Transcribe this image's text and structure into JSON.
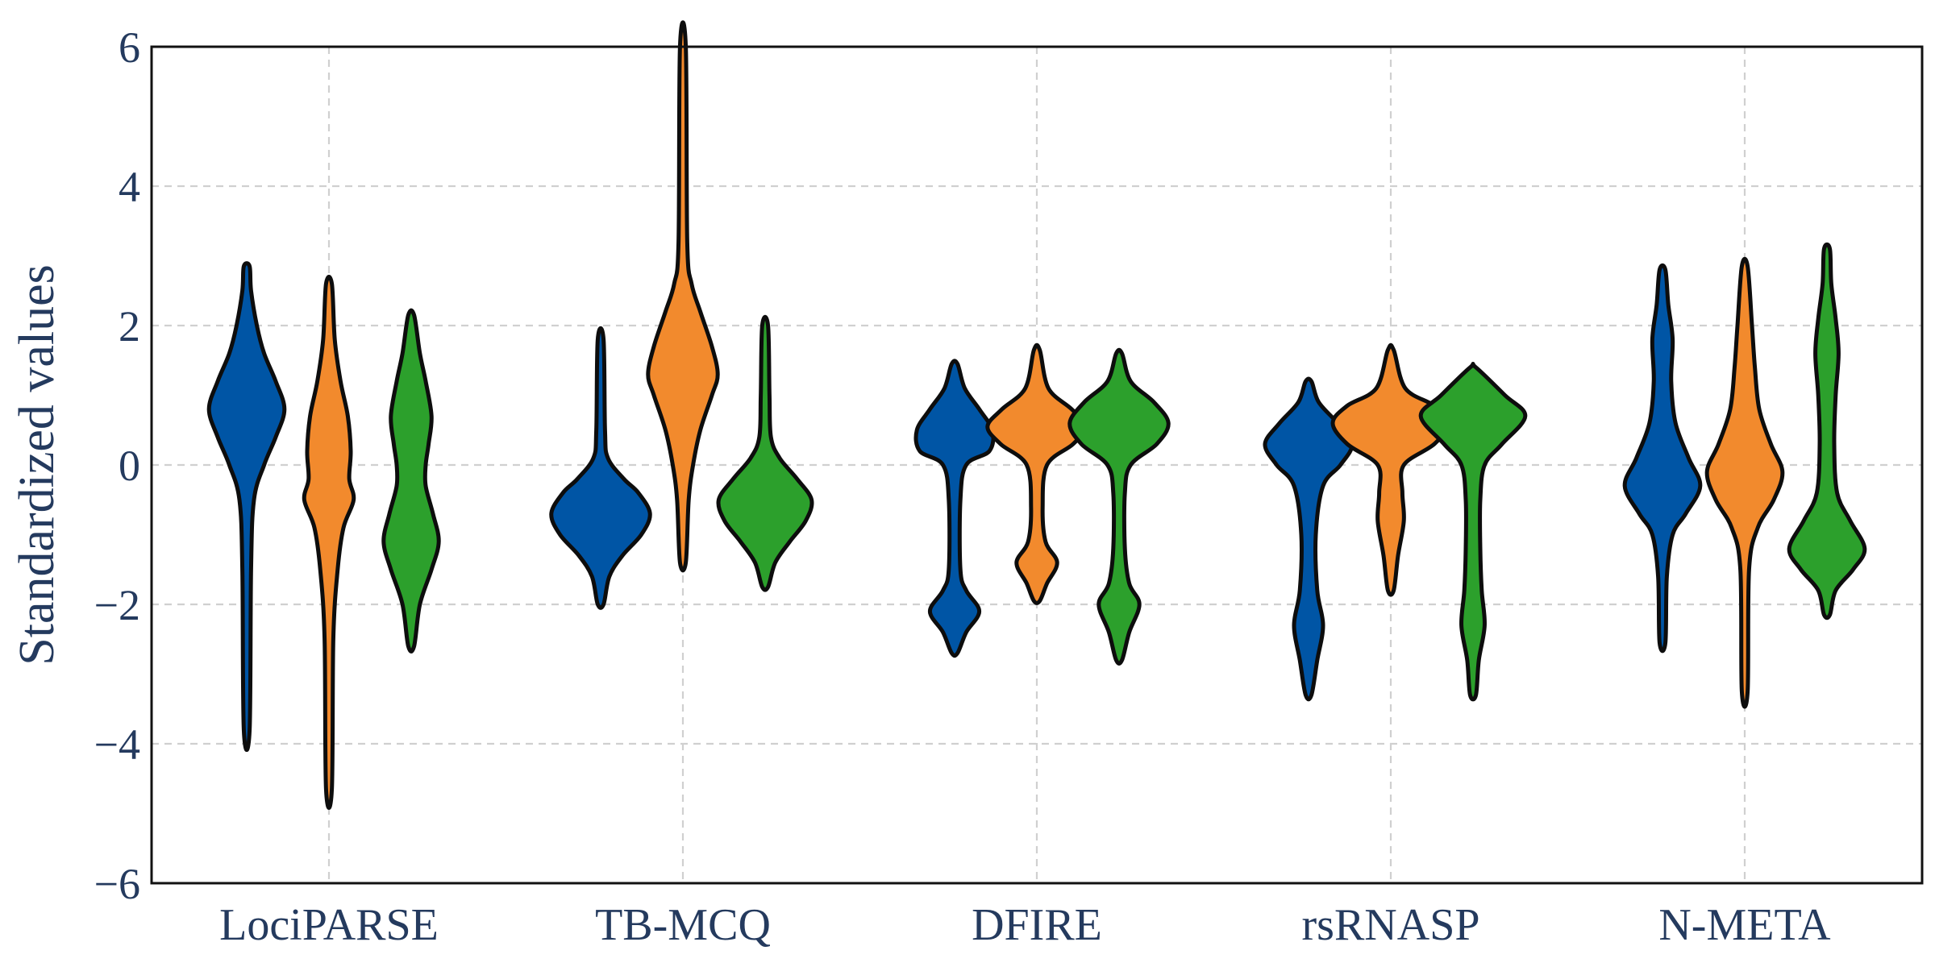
{
  "chart_data": {
    "type": "violin",
    "ylabel": "Standardized values",
    "ylim": [
      -6,
      6
    ],
    "yticks": [
      -6,
      -4,
      -2,
      0,
      2,
      4,
      6
    ],
    "ytick_labels": [
      "−6",
      "−4",
      "−2",
      "0",
      "2",
      "4",
      "6"
    ],
    "grid": true,
    "categories": [
      "LociPARSE",
      "TB-MCQ",
      "DFIRE",
      "rsRNASP",
      "N-META"
    ],
    "colors": [
      "#0055a5",
      "#f28a2d",
      "#2ca02c"
    ],
    "violins": [
      {
        "category": "LociPARSE",
        "series_index": 0,
        "min": -3.8,
        "max": 2.85,
        "profile": [
          [
            -3.8,
            0.02
          ],
          [
            -1.5,
            0.03
          ],
          [
            -0.5,
            0.05
          ],
          [
            0,
            0.12
          ],
          [
            0.4,
            0.2
          ],
          [
            0.8,
            0.26
          ],
          [
            1.2,
            0.2
          ],
          [
            1.6,
            0.12
          ],
          [
            2.0,
            0.07
          ],
          [
            2.5,
            0.03
          ],
          [
            2.85,
            0.02
          ]
        ]
      },
      {
        "category": "LociPARSE",
        "series_index": 1,
        "min": -4.65,
        "max": 2.6,
        "profile": [
          [
            -4.65,
            0.02
          ],
          [
            -2.5,
            0.03
          ],
          [
            -1.5,
            0.06
          ],
          [
            -0.9,
            0.1
          ],
          [
            -0.5,
            0.17
          ],
          [
            -0.2,
            0.14
          ],
          [
            0.2,
            0.15
          ],
          [
            0.7,
            0.13
          ],
          [
            1.2,
            0.08
          ],
          [
            1.8,
            0.04
          ],
          [
            2.6,
            0.02
          ]
        ]
      },
      {
        "category": "LociPARSE",
        "series_index": 2,
        "min": -2.6,
        "max": 2.15,
        "profile": [
          [
            -2.6,
            0.02
          ],
          [
            -2.0,
            0.06
          ],
          [
            -1.5,
            0.14
          ],
          [
            -1.1,
            0.19
          ],
          [
            -0.7,
            0.15
          ],
          [
            -0.3,
            0.1
          ],
          [
            0,
            0.1
          ],
          [
            0.3,
            0.12
          ],
          [
            0.7,
            0.14
          ],
          [
            1.2,
            0.1
          ],
          [
            1.6,
            0.06
          ],
          [
            2.15,
            0.02
          ]
        ]
      },
      {
        "category": "TB-MCQ",
        "series_index": 0,
        "min": -2.0,
        "max": 1.8,
        "profile": [
          [
            -2.0,
            0.02
          ],
          [
            -1.6,
            0.06
          ],
          [
            -1.3,
            0.15
          ],
          [
            -1.0,
            0.28
          ],
          [
            -0.7,
            0.34
          ],
          [
            -0.4,
            0.26
          ],
          [
            -0.2,
            0.16
          ],
          [
            0.1,
            0.05
          ],
          [
            0.5,
            0.03
          ],
          [
            1.8,
            0.02
          ]
        ]
      },
      {
        "category": "TB-MCQ",
        "series_index": 1,
        "min": -1.4,
        "max": 6.0,
        "profile": [
          [
            -1.4,
            0.02
          ],
          [
            -0.5,
            0.04
          ],
          [
            0,
            0.07
          ],
          [
            0.5,
            0.12
          ],
          [
            1.0,
            0.2
          ],
          [
            1.3,
            0.24
          ],
          [
            1.7,
            0.2
          ],
          [
            2.2,
            0.12
          ],
          [
            2.6,
            0.06
          ],
          [
            3.2,
            0.03
          ],
          [
            6.0,
            0.02
          ]
        ]
      },
      {
        "category": "TB-MCQ",
        "series_index": 2,
        "min": -1.75,
        "max": 2.0,
        "profile": [
          [
            -1.75,
            0.02
          ],
          [
            -1.4,
            0.07
          ],
          [
            -1.1,
            0.17
          ],
          [
            -0.8,
            0.28
          ],
          [
            -0.5,
            0.32
          ],
          [
            -0.2,
            0.22
          ],
          [
            0.1,
            0.1
          ],
          [
            0.4,
            0.04
          ],
          [
            1.0,
            0.03
          ],
          [
            2.0,
            0.02
          ]
        ]
      },
      {
        "category": "DFIRE",
        "series_index": 0,
        "min": -2.7,
        "max": 1.45,
        "profile": [
          [
            -2.7,
            0.02
          ],
          [
            -2.4,
            0.08
          ],
          [
            -2.1,
            0.17
          ],
          [
            -1.8,
            0.08
          ],
          [
            -1.5,
            0.04
          ],
          [
            -0.5,
            0.04
          ],
          [
            0,
            0.08
          ],
          [
            0.2,
            0.24
          ],
          [
            0.5,
            0.26
          ],
          [
            0.8,
            0.17
          ],
          [
            1.1,
            0.07
          ],
          [
            1.45,
            0.02
          ]
        ]
      },
      {
        "category": "DFIRE",
        "series_index": 1,
        "min": -1.95,
        "max": 1.65,
        "profile": [
          [
            -1.95,
            0.02
          ],
          [
            -1.7,
            0.07
          ],
          [
            -1.4,
            0.14
          ],
          [
            -1.1,
            0.06
          ],
          [
            -0.6,
            0.04
          ],
          [
            0,
            0.07
          ],
          [
            0.3,
            0.25
          ],
          [
            0.55,
            0.34
          ],
          [
            0.8,
            0.24
          ],
          [
            1.1,
            0.08
          ],
          [
            1.65,
            0.02
          ]
        ]
      },
      {
        "category": "DFIRE",
        "series_index": 2,
        "min": -2.8,
        "max": 1.6,
        "profile": [
          [
            -2.8,
            0.02
          ],
          [
            -2.4,
            0.07
          ],
          [
            -2.0,
            0.14
          ],
          [
            -1.7,
            0.07
          ],
          [
            -1.2,
            0.04
          ],
          [
            -0.4,
            0.04
          ],
          [
            0,
            0.08
          ],
          [
            0.3,
            0.26
          ],
          [
            0.6,
            0.34
          ],
          [
            0.9,
            0.24
          ],
          [
            1.2,
            0.08
          ],
          [
            1.6,
            0.02
          ]
        ]
      },
      {
        "category": "rsRNASP",
        "series_index": 0,
        "min": -3.3,
        "max": 1.2,
        "profile": [
          [
            -3.3,
            0.02
          ],
          [
            -2.8,
            0.06
          ],
          [
            -2.3,
            0.1
          ],
          [
            -1.8,
            0.06
          ],
          [
            -1.0,
            0.05
          ],
          [
            -0.3,
            0.1
          ],
          [
            0,
            0.22
          ],
          [
            0.3,
            0.3
          ],
          [
            0.6,
            0.2
          ],
          [
            0.9,
            0.07
          ],
          [
            1.2,
            0.02
          ]
        ]
      },
      {
        "category": "rsRNASP",
        "series_index": 1,
        "min": -1.8,
        "max": 1.65,
        "profile": [
          [
            -1.8,
            0.02
          ],
          [
            -1.3,
            0.05
          ],
          [
            -0.8,
            0.09
          ],
          [
            -0.4,
            0.08
          ],
          [
            0,
            0.09
          ],
          [
            0.3,
            0.3
          ],
          [
            0.6,
            0.4
          ],
          [
            0.85,
            0.3
          ],
          [
            1.1,
            0.1
          ],
          [
            1.65,
            0.02
          ]
        ]
      },
      {
        "category": "rsRNASP",
        "series_index": 2,
        "min": -3.3,
        "max": 1.4,
        "profile": [
          [
            -3.3,
            0.02
          ],
          [
            -2.8,
            0.04
          ],
          [
            -2.3,
            0.08
          ],
          [
            -1.8,
            0.06
          ],
          [
            -1.2,
            0.05
          ],
          [
            -0.5,
            0.05
          ],
          [
            0,
            0.08
          ],
          [
            0.3,
            0.2
          ],
          [
            0.7,
            0.36
          ],
          [
            1.0,
            0.22
          ],
          [
            1.4,
            0.02
          ]
        ]
      },
      {
        "category": "N-META",
        "series_index": 0,
        "min": -2.55,
        "max": 2.8,
        "profile": [
          [
            -2.55,
            0.02
          ],
          [
            -1.6,
            0.03
          ],
          [
            -1.0,
            0.07
          ],
          [
            -0.7,
            0.16
          ],
          [
            -0.3,
            0.26
          ],
          [
            0.1,
            0.18
          ],
          [
            0.6,
            0.09
          ],
          [
            1.2,
            0.06
          ],
          [
            1.8,
            0.07
          ],
          [
            2.3,
            0.04
          ],
          [
            2.8,
            0.02
          ]
        ]
      },
      {
        "category": "N-META",
        "series_index": 1,
        "min": -3.25,
        "max": 2.85,
        "profile": [
          [
            -3.25,
            0.02
          ],
          [
            -1.5,
            0.03
          ],
          [
            -0.9,
            0.09
          ],
          [
            -0.5,
            0.2
          ],
          [
            -0.1,
            0.26
          ],
          [
            0.3,
            0.18
          ],
          [
            0.8,
            0.1
          ],
          [
            1.4,
            0.07
          ],
          [
            2.0,
            0.05
          ],
          [
            2.85,
            0.02
          ]
        ]
      },
      {
        "category": "N-META",
        "series_index": 2,
        "min": -2.15,
        "max": 3.1,
        "profile": [
          [
            -2.15,
            0.02
          ],
          [
            -1.8,
            0.06
          ],
          [
            -1.5,
            0.18
          ],
          [
            -1.2,
            0.26
          ],
          [
            -0.8,
            0.16
          ],
          [
            -0.4,
            0.07
          ],
          [
            0.3,
            0.05
          ],
          [
            1.0,
            0.06
          ],
          [
            1.6,
            0.08
          ],
          [
            2.1,
            0.06
          ],
          [
            2.6,
            0.03
          ],
          [
            3.1,
            0.02
          ]
        ]
      }
    ]
  }
}
